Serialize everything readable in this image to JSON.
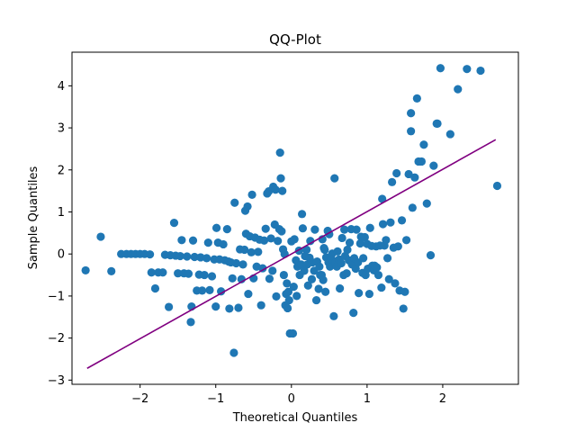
{
  "chart_data": {
    "type": "scatter",
    "title": "QQ-Plot",
    "xlabel": "Theoretical Quantiles",
    "ylabel": "Sample Quantiles",
    "xlim": [
      -2.9,
      3.0
    ],
    "ylim": [
      -3.1,
      4.8
    ],
    "xticks": [
      -2,
      -1,
      0,
      1,
      2
    ],
    "xtick_labels": [
      "−2",
      "−1",
      "0",
      "1",
      "2"
    ],
    "yticks": [
      -3,
      -2,
      -1,
      0,
      1,
      2,
      3,
      4
    ],
    "ytick_labels": [
      "−3",
      "−2",
      "−1",
      "0",
      "1",
      "2",
      "3",
      "4"
    ],
    "grid": false,
    "point_color": "#1f77b4",
    "line_color": "#800080",
    "reference_line": {
      "x": [
        -2.7,
        2.7
      ],
      "y": [
        -2.72,
        2.72
      ]
    },
    "points": [
      [
        -2.72,
        -0.39
      ],
      [
        -2.52,
        0.41
      ],
      [
        -2.38,
        -0.41
      ],
      [
        -2.25,
        0.0
      ],
      [
        -2.18,
        0.0
      ],
      [
        -2.12,
        0.0
      ],
      [
        -2.06,
        0.0
      ],
      [
        -2.0,
        0.0
      ],
      [
        -1.94,
        0.0
      ],
      [
        -1.87,
        -0.01
      ],
      [
        -1.8,
        -0.82
      ],
      [
        -1.76,
        -0.44
      ],
      [
        -1.7,
        -0.44
      ],
      [
        -1.67,
        -0.02
      ],
      [
        -1.62,
        -1.26
      ],
      [
        -1.6,
        -0.03
      ],
      [
        -1.55,
        0.74
      ],
      [
        -1.53,
        -0.04
      ],
      [
        -1.5,
        -0.46
      ],
      [
        -1.47,
        -0.05
      ],
      [
        -1.45,
        0.33
      ],
      [
        -1.42,
        -0.46
      ],
      [
        -1.38,
        -0.06
      ],
      [
        -1.36,
        -0.47
      ],
      [
        -1.33,
        -1.62
      ],
      [
        -1.32,
        -1.25
      ],
      [
        -1.3,
        0.32
      ],
      [
        -1.28,
        -0.07
      ],
      [
        -1.25,
        -0.87
      ],
      [
        -1.22,
        -0.49
      ],
      [
        -1.2,
        -0.08
      ],
      [
        -1.18,
        -0.87
      ],
      [
        -1.15,
        -0.5
      ],
      [
        -1.12,
        -0.1
      ],
      [
        -1.1,
        0.27
      ],
      [
        -1.08,
        -0.86
      ],
      [
        -1.05,
        -0.53
      ],
      [
        -1.02,
        -0.13
      ],
      [
        -1.0,
        -1.25
      ],
      [
        -0.99,
        0.62
      ],
      [
        -0.97,
        0.27
      ],
      [
        -0.95,
        -0.13
      ],
      [
        -0.93,
        -0.89
      ],
      [
        -0.9,
        0.23
      ],
      [
        -0.88,
        -0.15
      ],
      [
        -0.85,
        0.59
      ],
      [
        -0.83,
        -0.18
      ],
      [
        -0.82,
        -1.3
      ],
      [
        -0.8,
        -0.2
      ],
      [
        -0.78,
        -0.58
      ],
      [
        -0.76,
        -2.35
      ],
      [
        -0.75,
        1.22
      ],
      [
        -0.73,
        -0.22
      ],
      [
        -0.7,
        -1.28
      ],
      [
        -0.68,
        0.11
      ],
      [
        -0.66,
        -0.6
      ],
      [
        -0.64,
        -0.25
      ],
      [
        -0.62,
        0.1
      ],
      [
        -0.6,
        0.48
      ],
      [
        -0.58,
        1.13
      ],
      [
        -0.57,
        -0.95
      ],
      [
        -0.55,
        0.42
      ],
      [
        -0.53,
        0.04
      ],
      [
        -0.52,
        1.41
      ],
      [
        -0.5,
        -0.58
      ],
      [
        -0.48,
        0.39
      ],
      [
        -0.46,
        -0.3
      ],
      [
        -0.44,
        0.05
      ],
      [
        -0.42,
        0.34
      ],
      [
        -0.4,
        -1.22
      ],
      [
        -0.38,
        -0.34
      ],
      [
        -0.36,
        0.32
      ],
      [
        -0.34,
        0.6
      ],
      [
        -0.32,
        1.44
      ],
      [
        -0.3,
        1.49
      ],
      [
        -0.29,
        -0.59
      ],
      [
        -0.27,
        0.37
      ],
      [
        -0.25,
        -0.4
      ],
      [
        -0.24,
        1.6
      ],
      [
        -0.22,
        0.7
      ],
      [
        -0.21,
        1.53
      ],
      [
        -0.2,
        -1.01
      ],
      [
        -0.18,
        0.31
      ],
      [
        -0.16,
        0.59
      ],
      [
        -0.15,
        2.41
      ],
      [
        -0.14,
        1.8
      ],
      [
        -0.13,
        0.54
      ],
      [
        -0.12,
        1.5
      ],
      [
        -0.11,
        0.11
      ],
      [
        -0.1,
        -0.5
      ],
      [
        -0.09,
        0.0
      ],
      [
        -0.08,
        -1.22
      ],
      [
        -0.07,
        -0.95
      ],
      [
        -0.06,
        -0.7
      ],
      [
        -0.05,
        -1.29
      ],
      [
        -0.04,
        -0.9
      ],
      [
        -0.03,
        -1.1
      ],
      [
        -0.02,
        -1.89
      ],
      [
        0.0,
        0.3
      ],
      [
        0.02,
        -1.89
      ],
      [
        0.03,
        -0.78
      ],
      [
        0.04,
        0.35
      ],
      [
        0.06,
        -0.15
      ],
      [
        0.07,
        -1.0
      ],
      [
        0.08,
        -0.3
      ],
      [
        0.1,
        0.08
      ],
      [
        0.11,
        -0.5
      ],
      [
        0.13,
        -0.25
      ],
      [
        0.14,
        0.95
      ],
      [
        0.15,
        0.61
      ],
      [
        0.17,
        -0.4
      ],
      [
        0.18,
        -0.05
      ],
      [
        0.2,
        0.1
      ],
      [
        0.21,
        -0.25
      ],
      [
        0.22,
        -0.75
      ],
      [
        0.24,
        -0.09
      ],
      [
        0.25,
        0.31
      ],
      [
        0.27,
        -0.6
      ],
      [
        0.28,
        -0.2
      ],
      [
        0.3,
        -0.4
      ],
      [
        0.31,
        0.58
      ],
      [
        0.33,
        -1.1
      ],
      [
        0.34,
        -0.18
      ],
      [
        0.36,
        -0.83
      ],
      [
        0.37,
        -0.3
      ],
      [
        0.38,
        -0.5
      ],
      [
        0.4,
        -0.5
      ],
      [
        0.41,
        0.35
      ],
      [
        0.42,
        -0.62
      ],
      [
        0.44,
        0.1
      ],
      [
        0.45,
        -0.9
      ],
      [
        0.46,
        -0.08
      ],
      [
        0.48,
        0.55
      ],
      [
        0.49,
        -0.2
      ],
      [
        0.5,
        0.47
      ],
      [
        0.51,
        -0.3
      ],
      [
        0.53,
        -0.12
      ],
      [
        0.54,
        0.01
      ],
      [
        0.56,
        -1.48
      ],
      [
        0.57,
        1.8
      ],
      [
        0.58,
        -0.2
      ],
      [
        0.6,
        -0.3
      ],
      [
        0.61,
        0.06
      ],
      [
        0.63,
        -0.13
      ],
      [
        0.64,
        -0.82
      ],
      [
        0.66,
        -0.22
      ],
      [
        0.67,
        0.38
      ],
      [
        0.69,
        -0.5
      ],
      [
        0.7,
        0.58
      ],
      [
        0.71,
        -0.05
      ],
      [
        0.73,
        -0.46
      ],
      [
        0.74,
        0.1
      ],
      [
        0.76,
        -0.15
      ],
      [
        0.77,
        0.27
      ],
      [
        0.79,
        0.59
      ],
      [
        0.8,
        -0.25
      ],
      [
        0.82,
        -1.4
      ],
      [
        0.83,
        -0.1
      ],
      [
        0.85,
        -0.35
      ],
      [
        0.86,
        0.58
      ],
      [
        0.88,
        -0.2
      ],
      [
        0.89,
        -0.93
      ],
      [
        0.91,
        0.25
      ],
      [
        0.92,
        0.41
      ],
      [
        0.94,
        -0.45
      ],
      [
        0.95,
        -0.1
      ],
      [
        0.97,
        0.4
      ],
      [
        0.98,
        -0.5
      ],
      [
        1.0,
        0.24
      ],
      [
        1.01,
        -0.35
      ],
      [
        1.03,
        -0.95
      ],
      [
        1.04,
        0.62
      ],
      [
        1.06,
        0.19
      ],
      [
        1.07,
        -0.28
      ],
      [
        1.09,
        -0.39
      ],
      [
        1.1,
        -0.28
      ],
      [
        1.12,
        0.18
      ],
      [
        1.13,
        -0.32
      ],
      [
        1.15,
        -0.5
      ],
      [
        1.17,
        0.2
      ],
      [
        1.19,
        -0.8
      ],
      [
        1.21,
        0.71
      ],
      [
        1.23,
        0.2
      ],
      [
        1.25,
        0.33
      ],
      [
        1.27,
        -0.1
      ],
      [
        1.29,
        -0.6
      ],
      [
        1.31,
        0.75
      ],
      [
        1.33,
        1.71
      ],
      [
        1.35,
        0.15
      ],
      [
        1.37,
        -0.7
      ],
      [
        1.39,
        1.92
      ],
      [
        1.41,
        0.18
      ],
      [
        1.43,
        -0.87
      ],
      [
        1.46,
        0.8
      ],
      [
        1.48,
        -1.3
      ],
      [
        1.5,
        -0.9
      ],
      [
        1.52,
        0.33
      ],
      [
        1.55,
        1.9
      ],
      [
        1.58,
        3.35
      ],
      [
        1.6,
        1.1
      ],
      [
        1.63,
        1.82
      ],
      [
        1.66,
        3.7
      ],
      [
        1.68,
        2.2
      ],
      [
        1.72,
        2.2
      ],
      [
        1.75,
        2.6
      ],
      [
        1.79,
        1.2
      ],
      [
        1.84,
        -0.03
      ],
      [
        1.88,
        2.1
      ],
      [
        1.93,
        3.1
      ],
      [
        1.97,
        4.42
      ],
      [
        2.1,
        2.85
      ],
      [
        2.2,
        3.92
      ],
      [
        2.32,
        4.4
      ],
      [
        2.5,
        4.36
      ],
      [
        2.72,
        1.62
      ],
      [
        1.58,
        2.92
      ],
      [
        1.92,
        3.1
      ],
      [
        1.2,
        1.31
      ],
      [
        -1.85,
        -0.44
      ],
      [
        -0.61,
        1.03
      ],
      [
        0.43,
        0.14
      ]
    ]
  }
}
